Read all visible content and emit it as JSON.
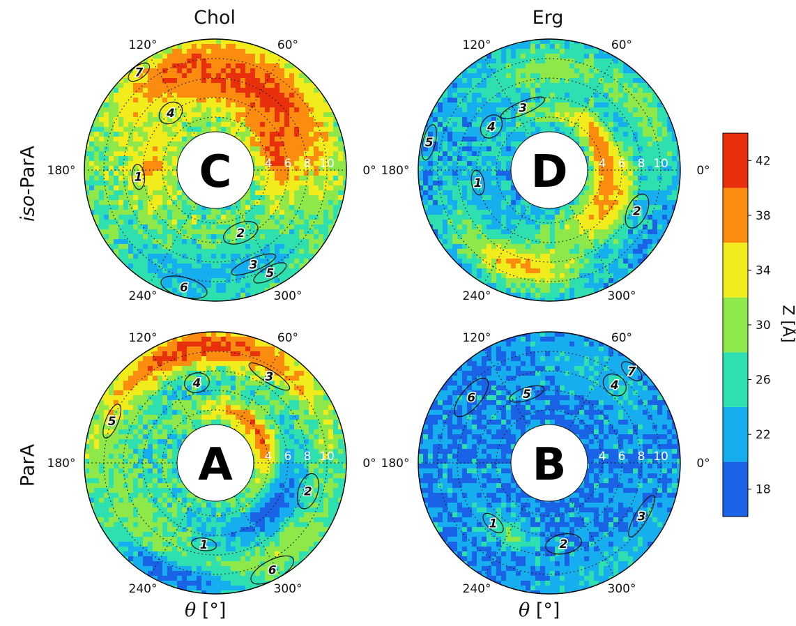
{
  "figure": {
    "col_titles": [
      "Chol",
      "Erg"
    ],
    "row_titles": {
      "top_prefix": "iso",
      "top_suffix": "-ParA",
      "bottom": "ParA"
    },
    "xlabel_symbol": "θ",
    "xlabel_unit": "[°]",
    "colorbar_label": "Z [Å]"
  },
  "colors": {
    "bins": [
      "#1a63e6",
      "#16aeee",
      "#2ee0b0",
      "#8ee84a",
      "#f2ec1c",
      "#fb8c10",
      "#e8300c"
    ],
    "contour": "#111111",
    "grid": "#111111",
    "hole": "#ffffff"
  },
  "chart_data": {
    "type": "polar-scatter",
    "colorbar": {
      "label": "Z [Å]",
      "ticks": [
        18,
        22,
        26,
        30,
        34,
        38,
        42
      ],
      "bins": [
        16,
        20,
        24,
        28,
        32,
        36,
        40,
        44
      ]
    },
    "angle_ticks": [
      "0°",
      "60°",
      "120°",
      "180°",
      "240°",
      "300°"
    ],
    "radial_ticks": [
      "4",
      "6",
      "8",
      "10"
    ],
    "r_range": [
      2.5,
      12
    ],
    "panels": [
      {
        "letter": "C",
        "column": "Chol",
        "row": "iso-ParA",
        "base_z": 28,
        "hotspots": [
          {
            "theta": 60,
            "r": 8,
            "z": 42,
            "width_deg": 70,
            "width_r": 3.2
          },
          {
            "theta": 20,
            "r": 5,
            "z": 41,
            "width_deg": 40,
            "width_r": 1.8
          },
          {
            "theta": 100,
            "r": 9.5,
            "z": 40,
            "width_deg": 45,
            "width_r": 2.2
          },
          {
            "theta": 175,
            "r": 5,
            "z": 36,
            "width_deg": 35,
            "width_r": 2.2
          },
          {
            "theta": 290,
            "r": 9,
            "z": 24,
            "width_deg": 40,
            "width_r": 2.5
          },
          {
            "theta": 250,
            "r": 10,
            "z": 22,
            "width_deg": 30,
            "width_r": 2
          }
        ],
        "markers": [
          {
            "label": "1",
            "theta": 185,
            "r": 6.5
          },
          {
            "label": "2",
            "theta": 292,
            "r": 5.5
          },
          {
            "label": "3",
            "theta": 292,
            "r": 9
          },
          {
            "label": "4",
            "theta": 128,
            "r": 6
          },
          {
            "label": "5",
            "theta": 298,
            "r": 10.5
          },
          {
            "label": "6",
            "theta": 255,
            "r": 11
          },
          {
            "label": "7",
            "theta": 128,
            "r": 11.3
          }
        ]
      },
      {
        "letter": "D",
        "column": "Erg",
        "row": "iso-ParA",
        "base_z": 22,
        "hotspots": [
          {
            "theta": 10,
            "r": 4.5,
            "z": 39,
            "width_deg": 90,
            "width_r": 1.6
          },
          {
            "theta": 250,
            "r": 8.5,
            "z": 37,
            "width_deg": 40,
            "width_r": 2.6
          },
          {
            "theta": 330,
            "r": 6,
            "z": 37,
            "width_deg": 40,
            "width_r": 1.8
          },
          {
            "theta": 90,
            "r": 9,
            "z": 30,
            "width_deg": 40,
            "width_r": 2.5
          },
          {
            "theta": 30,
            "r": 10,
            "z": 30,
            "width_deg": 30,
            "width_r": 2
          },
          {
            "theta": 215,
            "r": 6,
            "z": 23,
            "width_deg": 40,
            "width_r": 2
          }
        ],
        "markers": [
          {
            "label": "1",
            "theta": 190,
            "r": 6
          },
          {
            "label": "2",
            "theta": 335,
            "r": 8.5
          },
          {
            "label": "3",
            "theta": 113,
            "r": 5.5
          },
          {
            "label": "4",
            "theta": 143,
            "r": 6
          },
          {
            "label": "5",
            "theta": 167,
            "r": 11.2
          }
        ]
      },
      {
        "letter": "A",
        "column": "Chol",
        "row": "ParA",
        "base_z": 26,
        "hotspots": [
          {
            "theta": 95,
            "r": 10.5,
            "z": 42,
            "width_deg": 70,
            "width_r": 2
          },
          {
            "theta": 25,
            "r": 4,
            "z": 40,
            "width_deg": 80,
            "width_r": 1.4
          },
          {
            "theta": 300,
            "r": 9.5,
            "z": 31,
            "width_deg": 40,
            "width_r": 2.4
          },
          {
            "theta": 220,
            "r": 8.5,
            "z": 30,
            "width_deg": 40,
            "width_r": 2.5
          },
          {
            "theta": 320,
            "r": 6,
            "z": 18,
            "width_deg": 50,
            "width_r": 2
          },
          {
            "theta": 250,
            "r": 11,
            "z": 18,
            "width_deg": 30,
            "width_r": 1.5
          }
        ],
        "markers": [
          {
            "label": "1",
            "theta": 262,
            "r": 7
          },
          {
            "label": "2",
            "theta": 343,
            "r": 8.5
          },
          {
            "label": "3",
            "theta": 58,
            "r": 9
          },
          {
            "label": "4",
            "theta": 103,
            "r": 7
          },
          {
            "label": "5",
            "theta": 158,
            "r": 10
          },
          {
            "label": "6",
            "theta": 298,
            "r": 11
          }
        ]
      },
      {
        "letter": "B",
        "column": "Erg",
        "row": "ParA",
        "base_z": 20,
        "hotspots": [
          {
            "theta": 60,
            "r": 9,
            "z": 24,
            "width_deg": 40,
            "width_r": 2.5
          },
          {
            "theta": 240,
            "r": 7,
            "z": 27,
            "width_deg": 25,
            "width_r": 1.5
          },
          {
            "theta": 300,
            "r": 11,
            "z": 24,
            "width_deg": 40,
            "width_r": 2
          }
        ],
        "markers": [
          {
            "label": "1",
            "theta": 227,
            "r": 7
          },
          {
            "label": "2",
            "theta": 280,
            "r": 7
          },
          {
            "label": "3",
            "theta": 330,
            "r": 9.5
          },
          {
            "label": "4",
            "theta": 50,
            "r": 9
          },
          {
            "label": "5",
            "theta": 108,
            "r": 6
          },
          {
            "label": "6",
            "theta": 140,
            "r": 9
          },
          {
            "label": "7",
            "theta": 48,
            "r": 11.2
          }
        ]
      }
    ]
  }
}
